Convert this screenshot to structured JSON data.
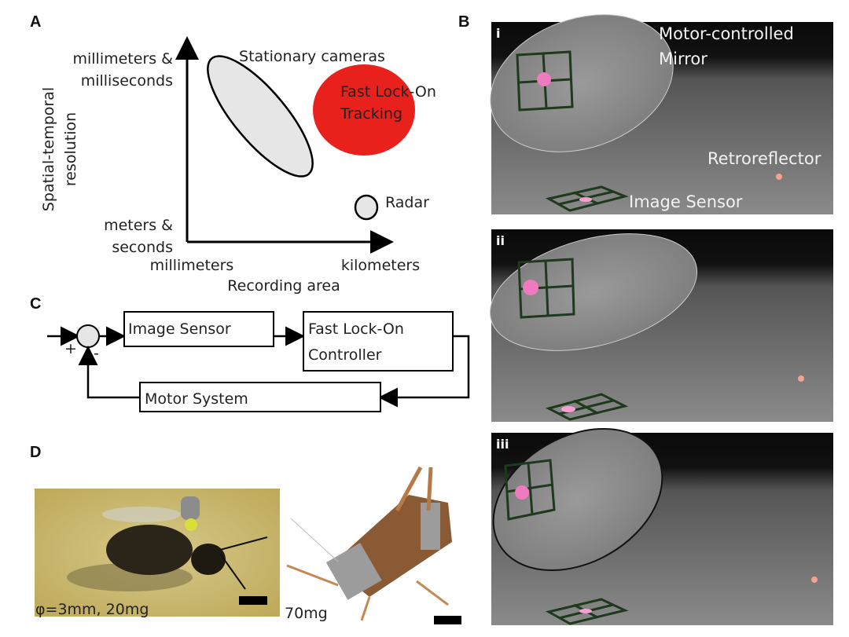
{
  "panel_labels": {
    "a": "A",
    "b": "B",
    "c": "C",
    "d": "D"
  },
  "panel_a": {
    "y_axis_label_line1": "Spatial-temporal",
    "y_axis_label_line2": "resolution",
    "y_top_line1": "millimeters &",
    "y_top_line2": "milliseconds",
    "y_bottom_line1": "meters &",
    "y_bottom_line2": "seconds",
    "x_left": "millimeters",
    "x_right": "kilometers",
    "x_axis_label": "Recording area",
    "stationary_cameras": "Stationary cameras",
    "tracking_line1": "Fast Lock-On",
    "tracking_line2": "Tracking",
    "radar": "Radar",
    "colors": {
      "tracking": "#e8211c",
      "regions": "#e6e6e6"
    }
  },
  "panel_b": {
    "panels": [
      {
        "numeral": "i"
      },
      {
        "numeral": "ii"
      },
      {
        "numeral": "iii"
      }
    ],
    "mirror_line1": "Motor-controlled",
    "mirror_line2": "Mirror",
    "retroreflector": "Retroreflector",
    "image_sensor": "Image Sensor"
  },
  "panel_c": {
    "plus": "+",
    "minus": "-",
    "image_sensor": "Image Sensor",
    "controller_line1": "Fast Lock-On",
    "controller_line2": "Controller",
    "motor_system": "Motor System"
  },
  "panel_d": {
    "bee_caption": "φ=3mm, 20mg",
    "locust_caption": "70mg"
  }
}
